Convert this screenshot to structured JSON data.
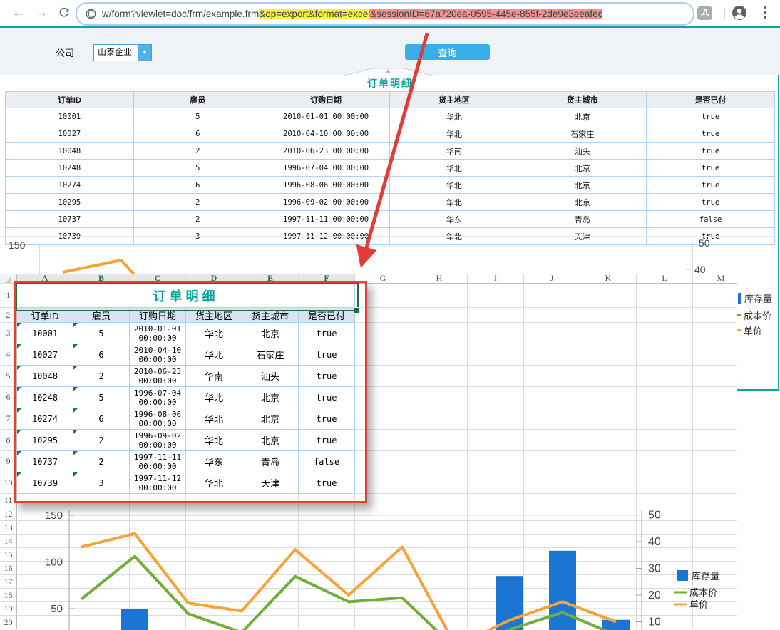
{
  "browser": {
    "url_prefix": "w/form?viewlet=doc/frm/example.frm",
    "url_highlight_yellow": "&op=export&format=excel",
    "url_highlight_red": "&sessionID=67a720ea-0595-445e-855f-2de9e3eeafec"
  },
  "form": {
    "company_label": "公司",
    "company_value": "山泰企业",
    "query_button": "查询",
    "report_title": "订单明细"
  },
  "table": {
    "headers": [
      "订单ID",
      "雇员",
      "订购日期",
      "货主地区",
      "货主城市",
      "是否已付"
    ],
    "rows": [
      [
        "10001",
        "5",
        "2010-01-01 00:00:00",
        "华北",
        "北京",
        "true"
      ],
      [
        "10027",
        "6",
        "2010-04-10 00:00:00",
        "华北",
        "石家庄",
        "true"
      ],
      [
        "10048",
        "2",
        "2010-06-23 00:00:00",
        "华南",
        "汕头",
        "true"
      ],
      [
        "10248",
        "5",
        "1996-07-04 00:00:00",
        "华北",
        "北京",
        "true"
      ],
      [
        "10274",
        "6",
        "1996-08-06 00:00:00",
        "华北",
        "北京",
        "true"
      ],
      [
        "10295",
        "2",
        "1996-09-02 00:00:00",
        "华北",
        "北京",
        "true"
      ],
      [
        "10737",
        "2",
        "1997-11-11 00:00:00",
        "华东",
        "青岛",
        "false"
      ],
      [
        "10739",
        "3",
        "1997-11-12 00:00:00",
        "华北",
        "天津",
        "true"
      ]
    ]
  },
  "excel": {
    "column_letters": [
      "A",
      "B",
      "C",
      "D",
      "E",
      "F",
      "G",
      "H",
      "I",
      "J",
      "K",
      "L",
      "M"
    ],
    "selected_columns": [
      "A",
      "B",
      "C",
      "D",
      "E",
      "F"
    ],
    "title": "订单明细",
    "headers": [
      "订单ID",
      "雇员",
      "订购日期",
      "货主地区",
      "货主城市",
      "是否已付"
    ],
    "rows": [
      [
        "10001",
        "5",
        "2010-01-01\n00:00:00",
        "华北",
        "北京",
        "true"
      ],
      [
        "10027",
        "6",
        "2010-04-10\n00:00:00",
        "华北",
        "石家庄",
        "true"
      ],
      [
        "10048",
        "2",
        "2010-06-23\n00:00:00",
        "华南",
        "汕头",
        "true"
      ],
      [
        "10248",
        "5",
        "1996-07-04\n00:00:00",
        "华北",
        "北京",
        "true"
      ],
      [
        "10274",
        "6",
        "1996-08-06\n00:00:00",
        "华北",
        "北京",
        "true"
      ],
      [
        "10295",
        "2",
        "1996-09-02\n00:00:00",
        "华北",
        "北京",
        "true"
      ],
      [
        "10737",
        "2",
        "1997-11-11\n00:00:00",
        "华东",
        "青岛",
        "false"
      ],
      [
        "10739",
        "3",
        "1997-11-12\n00:00:00",
        "华北",
        "天津",
        "true"
      ]
    ],
    "visible_row_count": 20
  },
  "chart_fragment": {
    "left_tick": "150",
    "right_tick_top": "50",
    "right_tick_bottom": "40"
  },
  "chart_data": {
    "type": "bar+line",
    "note": "combo chart shown twice in composite; top copy mostly hidden by Excel overlay, bottom copy cropped at image bottom",
    "x": [
      1,
      2,
      3,
      4,
      5,
      6,
      7,
      8,
      9,
      10,
      11
    ],
    "series": [
      {
        "name": "库存量",
        "type": "bar",
        "axis": "left",
        "color": "#1b75d2",
        "values": [
          null,
          50,
          null,
          null,
          null,
          null,
          null,
          null,
          85,
          112,
          38
        ]
      },
      {
        "name": "成本价",
        "type": "line",
        "axis": "right",
        "color": "#71af34",
        "values": [
          18.5,
          34.5,
          13,
          6,
          27,
          17.5,
          19,
          0,
          7,
          13.5,
          5
        ]
      },
      {
        "name": "单价",
        "type": "line",
        "axis": "right",
        "color": "#f8a33a",
        "values": [
          38,
          43,
          17,
          14,
          37,
          20,
          38,
          1,
          10.5,
          17.5,
          10
        ]
      }
    ],
    "left_axis": {
      "ticks": [
        50,
        100,
        150
      ],
      "lim": [
        0,
        150
      ]
    },
    "right_axis": {
      "ticks": [
        10,
        20,
        30,
        40,
        50
      ],
      "lim": [
        0,
        50
      ]
    },
    "legend_position": "right",
    "grid": true
  },
  "colors": {
    "teal": "#14a39c",
    "title_teal": "#0ba39c",
    "button_blue": "#39ade8",
    "highlight_yellow": "#f8ef3e",
    "highlight_red": "#f79191",
    "annotation_red": "#f03b30",
    "excel_green": "#1e7145",
    "bar_blue": "#1b75d2",
    "line_green": "#71af34",
    "line_orange": "#f8a33a"
  }
}
